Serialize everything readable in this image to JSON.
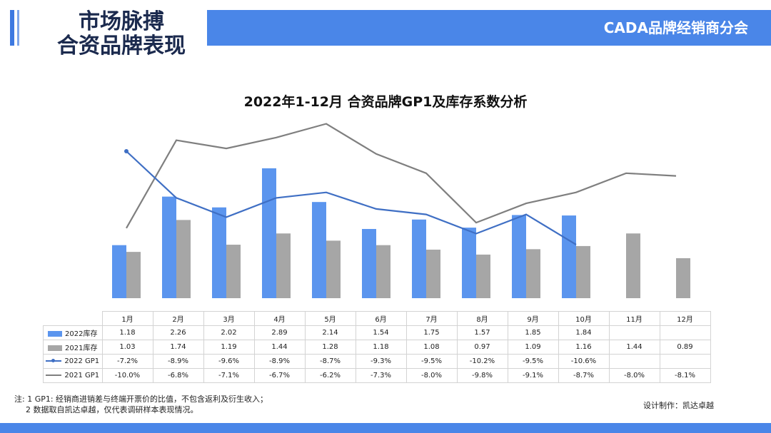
{
  "header": {
    "title_line1": "市场脉搏",
    "title_line2": "合资品牌表现",
    "org": "CADA品牌经销商分会"
  },
  "colors": {
    "blue": "#5b95ee",
    "gray": "#a6a6a6",
    "line_blue": "#3f6fc4",
    "line_gray": "#7f7f7f"
  },
  "chart_data": {
    "type": "bar",
    "title": "2022年1-12月 合资品牌GP1及库存系数分析",
    "categories": [
      "1月",
      "2月",
      "3月",
      "4月",
      "5月",
      "6月",
      "7月",
      "8月",
      "9月",
      "10月",
      "11月",
      "12月"
    ],
    "series": [
      {
        "name": "2022库存",
        "type": "bar",
        "display": [
          "1.18",
          "2.26",
          "2.02",
          "2.89",
          "2.14",
          "1.54",
          "1.75",
          "1.57",
          "1.85",
          "1.84",
          "",
          ""
        ],
        "values": [
          1.18,
          2.26,
          2.02,
          2.89,
          2.14,
          1.54,
          1.75,
          1.57,
          1.85,
          1.84,
          null,
          null
        ]
      },
      {
        "name": "2021库存",
        "type": "bar",
        "display": [
          "1.03",
          "1.74",
          "1.19",
          "1.44",
          "1.28",
          "1.18",
          "1.08",
          "0.97",
          "1.09",
          "1.16",
          "1.44",
          "0.89"
        ],
        "values": [
          1.03,
          1.74,
          1.19,
          1.44,
          1.28,
          1.18,
          1.08,
          0.97,
          1.09,
          1.16,
          1.44,
          0.89
        ]
      },
      {
        "name": "2022 GP1",
        "type": "line",
        "display": [
          "-7.2%",
          "-8.9%",
          "-9.6%",
          "-8.9%",
          "-8.7%",
          "-9.3%",
          "-9.5%",
          "-10.2%",
          "-9.5%",
          "-10.6%",
          "",
          ""
        ],
        "values": [
          -7.2,
          -8.9,
          -9.6,
          -8.9,
          -8.7,
          -9.3,
          -9.5,
          -10.2,
          -9.5,
          -10.6,
          null,
          null
        ]
      },
      {
        "name": "2021 GP1",
        "type": "line",
        "display": [
          "-10.0%",
          "-6.8%",
          "-7.1%",
          "-6.7%",
          "-6.2%",
          "-7.3%",
          "-8.0%",
          "-9.8%",
          "-9.1%",
          "-8.7%",
          "-8.0%",
          "-8.1%"
        ],
        "values": [
          -10.0,
          -6.8,
          -7.1,
          -6.7,
          -6.2,
          -7.3,
          -8.0,
          -9.8,
          -9.1,
          -8.7,
          -8.0,
          -8.1
        ]
      }
    ]
  },
  "notes": {
    "line1": "注: 1 GP1: 经销商进销差与终端开票价的比值，不包含返利及衍生收入；",
    "line2": "2 数据取自凯达卓越，仅代表调研样本表现情况。"
  },
  "credit": "设计制作：凯达卓越"
}
